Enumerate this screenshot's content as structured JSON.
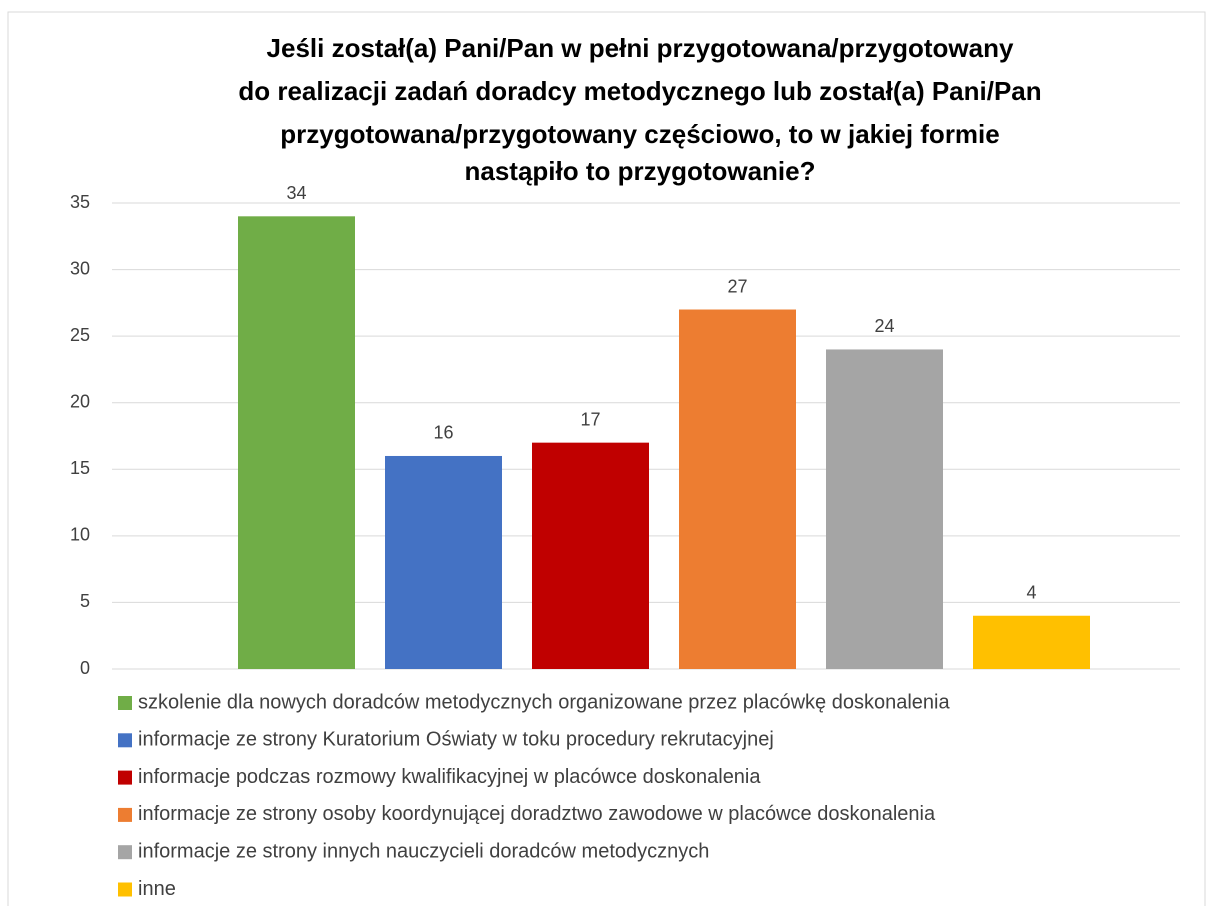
{
  "chart_data": {
    "type": "bar",
    "title": [
      "Jeśli został(a) Pani/Pan w pełni przygotowana/przygotowany",
      "do realizacji zadań doradcy metodycznego lub został(a) Pani/Pan",
      "przygotowana/przygotowany częściowo, to w jakiej formie",
      "nastąpiło to przygotowanie?"
    ],
    "categories": [
      null
    ],
    "series": [
      {
        "name": "szkolenie dla nowych doradców metodycznych organizowane przez placówkę doskonalenia",
        "color": "#70ad47",
        "values": [
          34
        ]
      },
      {
        "name": "informacje ze strony Kuratorium Oświaty w toku procedury rekrutacyjnej",
        "color": "#4472c4",
        "values": [
          16
        ]
      },
      {
        "name": "informacje podczas rozmowy kwalifikacyjnej w placówce doskonalenia",
        "color": "#c00000",
        "values": [
          17
        ]
      },
      {
        "name": "informacje ze strony osoby koordynującej doradztwo zawodowe w placówce doskonalenia",
        "color": "#ed7d31",
        "values": [
          27
        ]
      },
      {
        "name": "informacje ze strony innych nauczycieli doradców metodycznych",
        "color": "#a5a5a5",
        "values": [
          24
        ]
      },
      {
        "name": "inne",
        "color": "#ffc000",
        "values": [
          4
        ]
      }
    ],
    "ylim": [
      0,
      35
    ],
    "yticks": [
      0,
      5,
      10,
      15,
      20,
      25,
      30,
      35
    ],
    "grid": true,
    "legend": "bottom"
  }
}
